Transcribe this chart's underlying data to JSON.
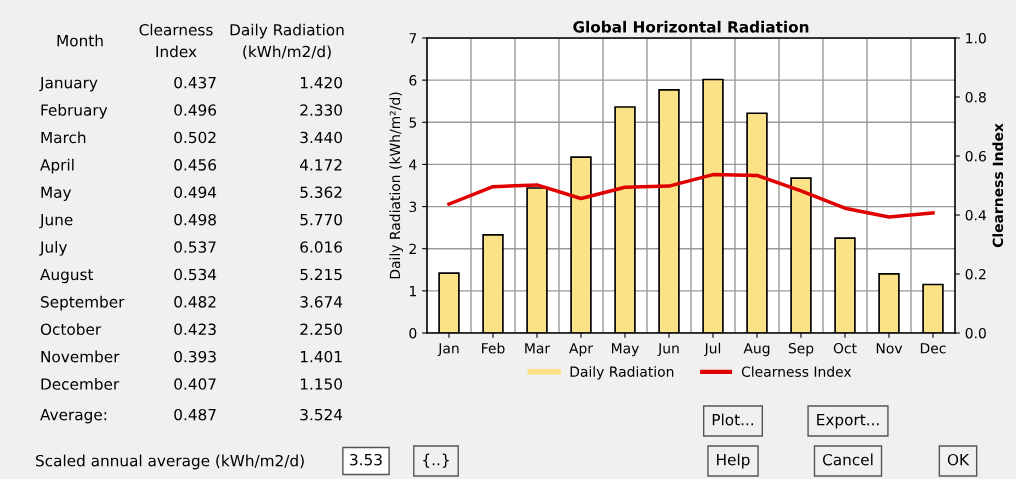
{
  "chart_data": {
    "type": "bar",
    "title": "Global Horizontal Radiation",
    "categories": [
      "Jan",
      "Feb",
      "Mar",
      "Apr",
      "May",
      "Jun",
      "Jul",
      "Aug",
      "Sep",
      "Oct",
      "Nov",
      "Dec"
    ],
    "series": [
      {
        "name": "Daily Radiation",
        "color": "#fce286",
        "values": [
          1.42,
          2.33,
          3.44,
          4.172,
          5.362,
          5.77,
          6.016,
          5.215,
          3.674,
          2.25,
          1.401,
          1.15
        ]
      },
      {
        "name": "Clearness Index",
        "type": "line",
        "axis": "y2",
        "color": "#e00000",
        "values": [
          0.437,
          0.496,
          0.502,
          0.456,
          0.494,
          0.498,
          0.537,
          0.534,
          0.482,
          0.423,
          0.393,
          0.407
        ]
      }
    ],
    "ylabel": "Daily Radiation (kWh/m²/d)",
    "y2label": "Clearness Index",
    "ylim": [
      0,
      7
    ],
    "yticks": [
      0,
      1,
      2,
      3,
      4,
      5,
      6,
      7
    ],
    "y2lim": [
      0,
      1.0
    ],
    "y2ticks": [
      {
        "value": 0,
        "label": "0.0"
      },
      {
        "value": 0.2,
        "label": "0.2"
      },
      {
        "value": 0.4,
        "label": "0.4"
      },
      {
        "value": 0.6,
        "label": "0.6"
      },
      {
        "value": 0.8,
        "label": "0.8"
      },
      {
        "value": 1.0,
        "label": "1.0"
      }
    ],
    "grid": true,
    "legend": "bottom",
    "annotations": [
      "Month",
      "Clearness Index",
      "Daily Radiation (kWh/m2/d)",
      "January",
      "0.437",
      "1.420",
      "February",
      "0.496",
      "2.330",
      "March",
      "0.502",
      "3.440",
      "April",
      "0.456",
      "4.172",
      "May",
      "0.494",
      "5.362",
      "June",
      "0.498",
      "5.770",
      "July",
      "0.537",
      "6.016",
      "August",
      "0.534",
      "5.215",
      "September",
      "0.482",
      "3.674",
      "October",
      "0.423",
      "2.250",
      "November",
      "0.393",
      "1.401",
      "December",
      "0.407",
      "1.150",
      "Average:",
      "0.487",
      "3.524",
      "Scaled annual average (kWh/m2/d)",
      "3.53",
      "{..}",
      "Plot...",
      "Export...",
      "Help",
      "Cancel",
      "OK"
    ]
  }
}
